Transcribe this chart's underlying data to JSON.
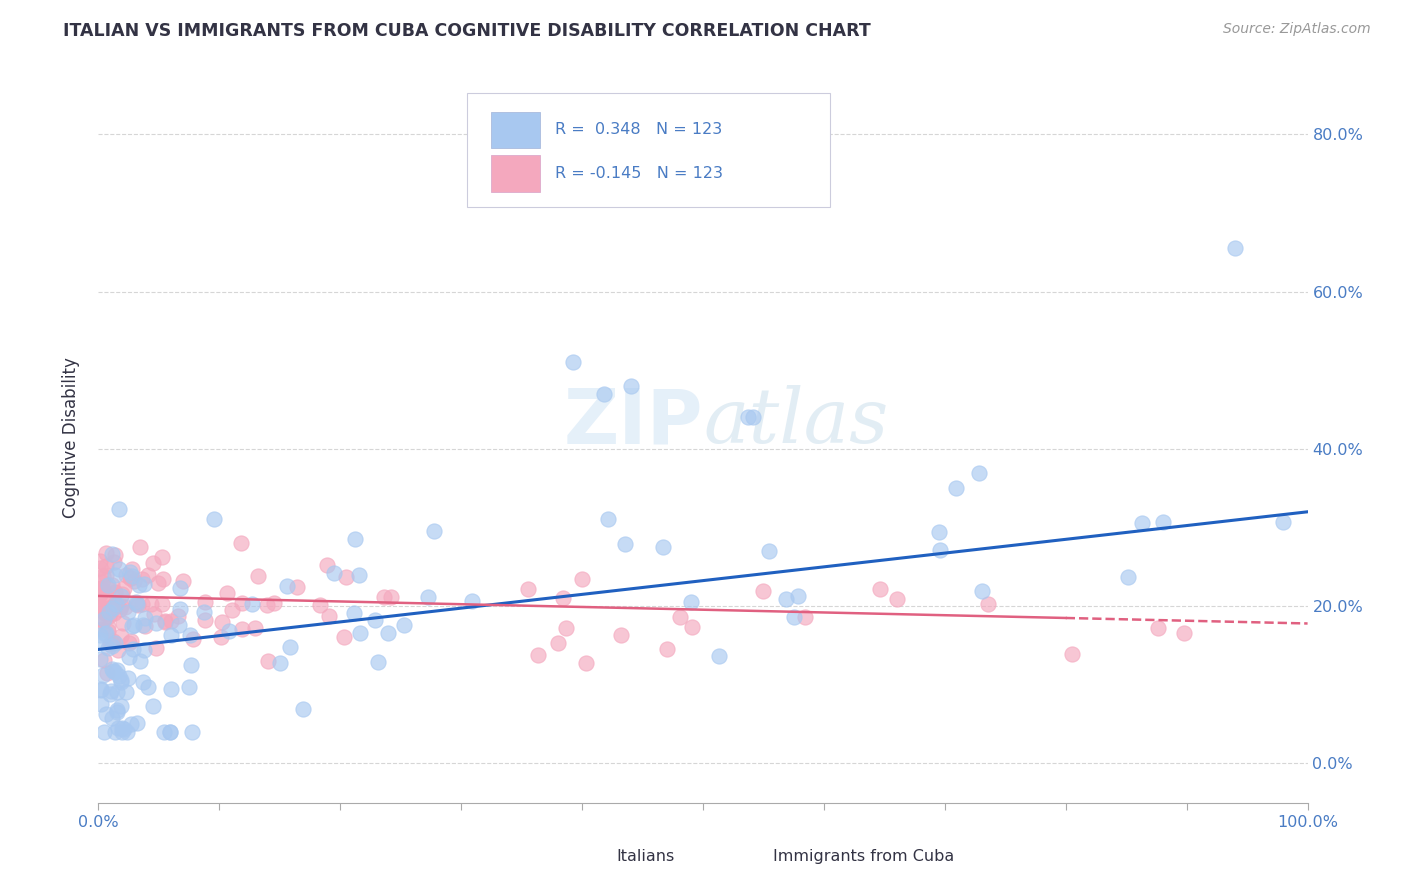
{
  "title": "ITALIAN VS IMMIGRANTS FROM CUBA COGNITIVE DISABILITY CORRELATION CHART",
  "source": "Source: ZipAtlas.com",
  "ylabel": "Cognitive Disability",
  "xlim": [
    0.0,
    1.0
  ],
  "ylim": [
    -0.05,
    0.88
  ],
  "ytick_positions": [
    0.0,
    0.2,
    0.4,
    0.6,
    0.8
  ],
  "ytick_labels": [
    "0.0%",
    "20.0%",
    "40.0%",
    "60.0%",
    "80.0%"
  ],
  "xtick_positions": [
    0.0,
    0.1,
    0.2,
    0.3,
    0.4,
    0.5,
    0.6,
    0.7,
    0.8,
    0.9,
    1.0
  ],
  "xtick_labels": [
    "0.0%",
    "",
    "",
    "",
    "",
    "",
    "",
    "",
    "",
    "",
    "100.0%"
  ],
  "r_italian": 0.348,
  "n_italian": 123,
  "r_cuba": -0.145,
  "n_cuba": 123,
  "color_italian": "#a8c8f0",
  "color_cuba": "#f4a8be",
  "line_color_italian": "#2060c0",
  "line_color_cuba": "#e06080",
  "text_color_blue": "#4a7cc4",
  "text_color_dark": "#333344",
  "background_color": "#ffffff",
  "grid_color": "#cccccc",
  "legend_edge_color": "#ddddee",
  "it_line_y0": 0.145,
  "it_line_y1": 0.32,
  "cu_line_y0": 0.213,
  "cu_line_y1": 0.178
}
